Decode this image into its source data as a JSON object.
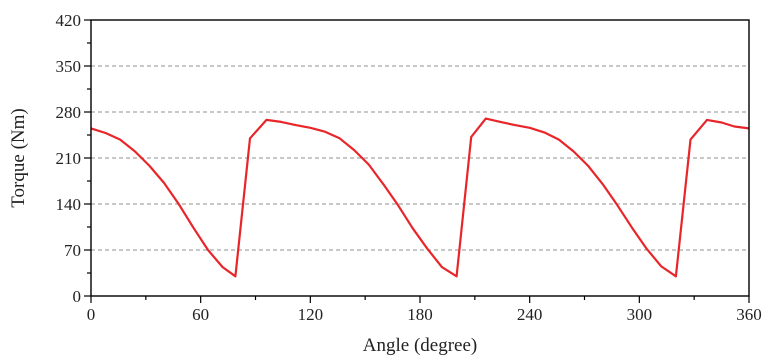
{
  "chart_data": {
    "type": "line",
    "title": "",
    "xlabel": "Angle (degree)",
    "ylabel": "Torque (Nm)",
    "xlim": [
      0,
      360
    ],
    "ylim": [
      0,
      420
    ],
    "xticks": [
      0,
      60,
      120,
      180,
      240,
      300,
      360
    ],
    "yticks": [
      0,
      70,
      140,
      210,
      280,
      350,
      420
    ],
    "grid": "horizontal dashed",
    "legend": "none",
    "line_color": "#e8262a",
    "series": [
      {
        "x": [
          0,
          8,
          16,
          24,
          32,
          40,
          48,
          56,
          64,
          72,
          79,
          87,
          96,
          104,
          112,
          120,
          128,
          136,
          144,
          152,
          160,
          168,
          176,
          184,
          192,
          200,
          208,
          216,
          224,
          232,
          240,
          248,
          256,
          264,
          272,
          280,
          288,
          296,
          304,
          312,
          320,
          328,
          337,
          345,
          352,
          360
        ],
        "y": [
          255,
          248,
          238,
          220,
          198,
          172,
          140,
          104,
          70,
          44,
          30,
          240,
          268,
          265,
          260,
          256,
          250,
          240,
          222,
          200,
          170,
          138,
          103,
          72,
          44,
          30,
          242,
          270,
          265,
          260,
          256,
          249,
          238,
          220,
          198,
          170,
          138,
          104,
          72,
          45,
          30,
          238,
          268,
          264,
          258,
          255
        ]
      }
    ]
  }
}
